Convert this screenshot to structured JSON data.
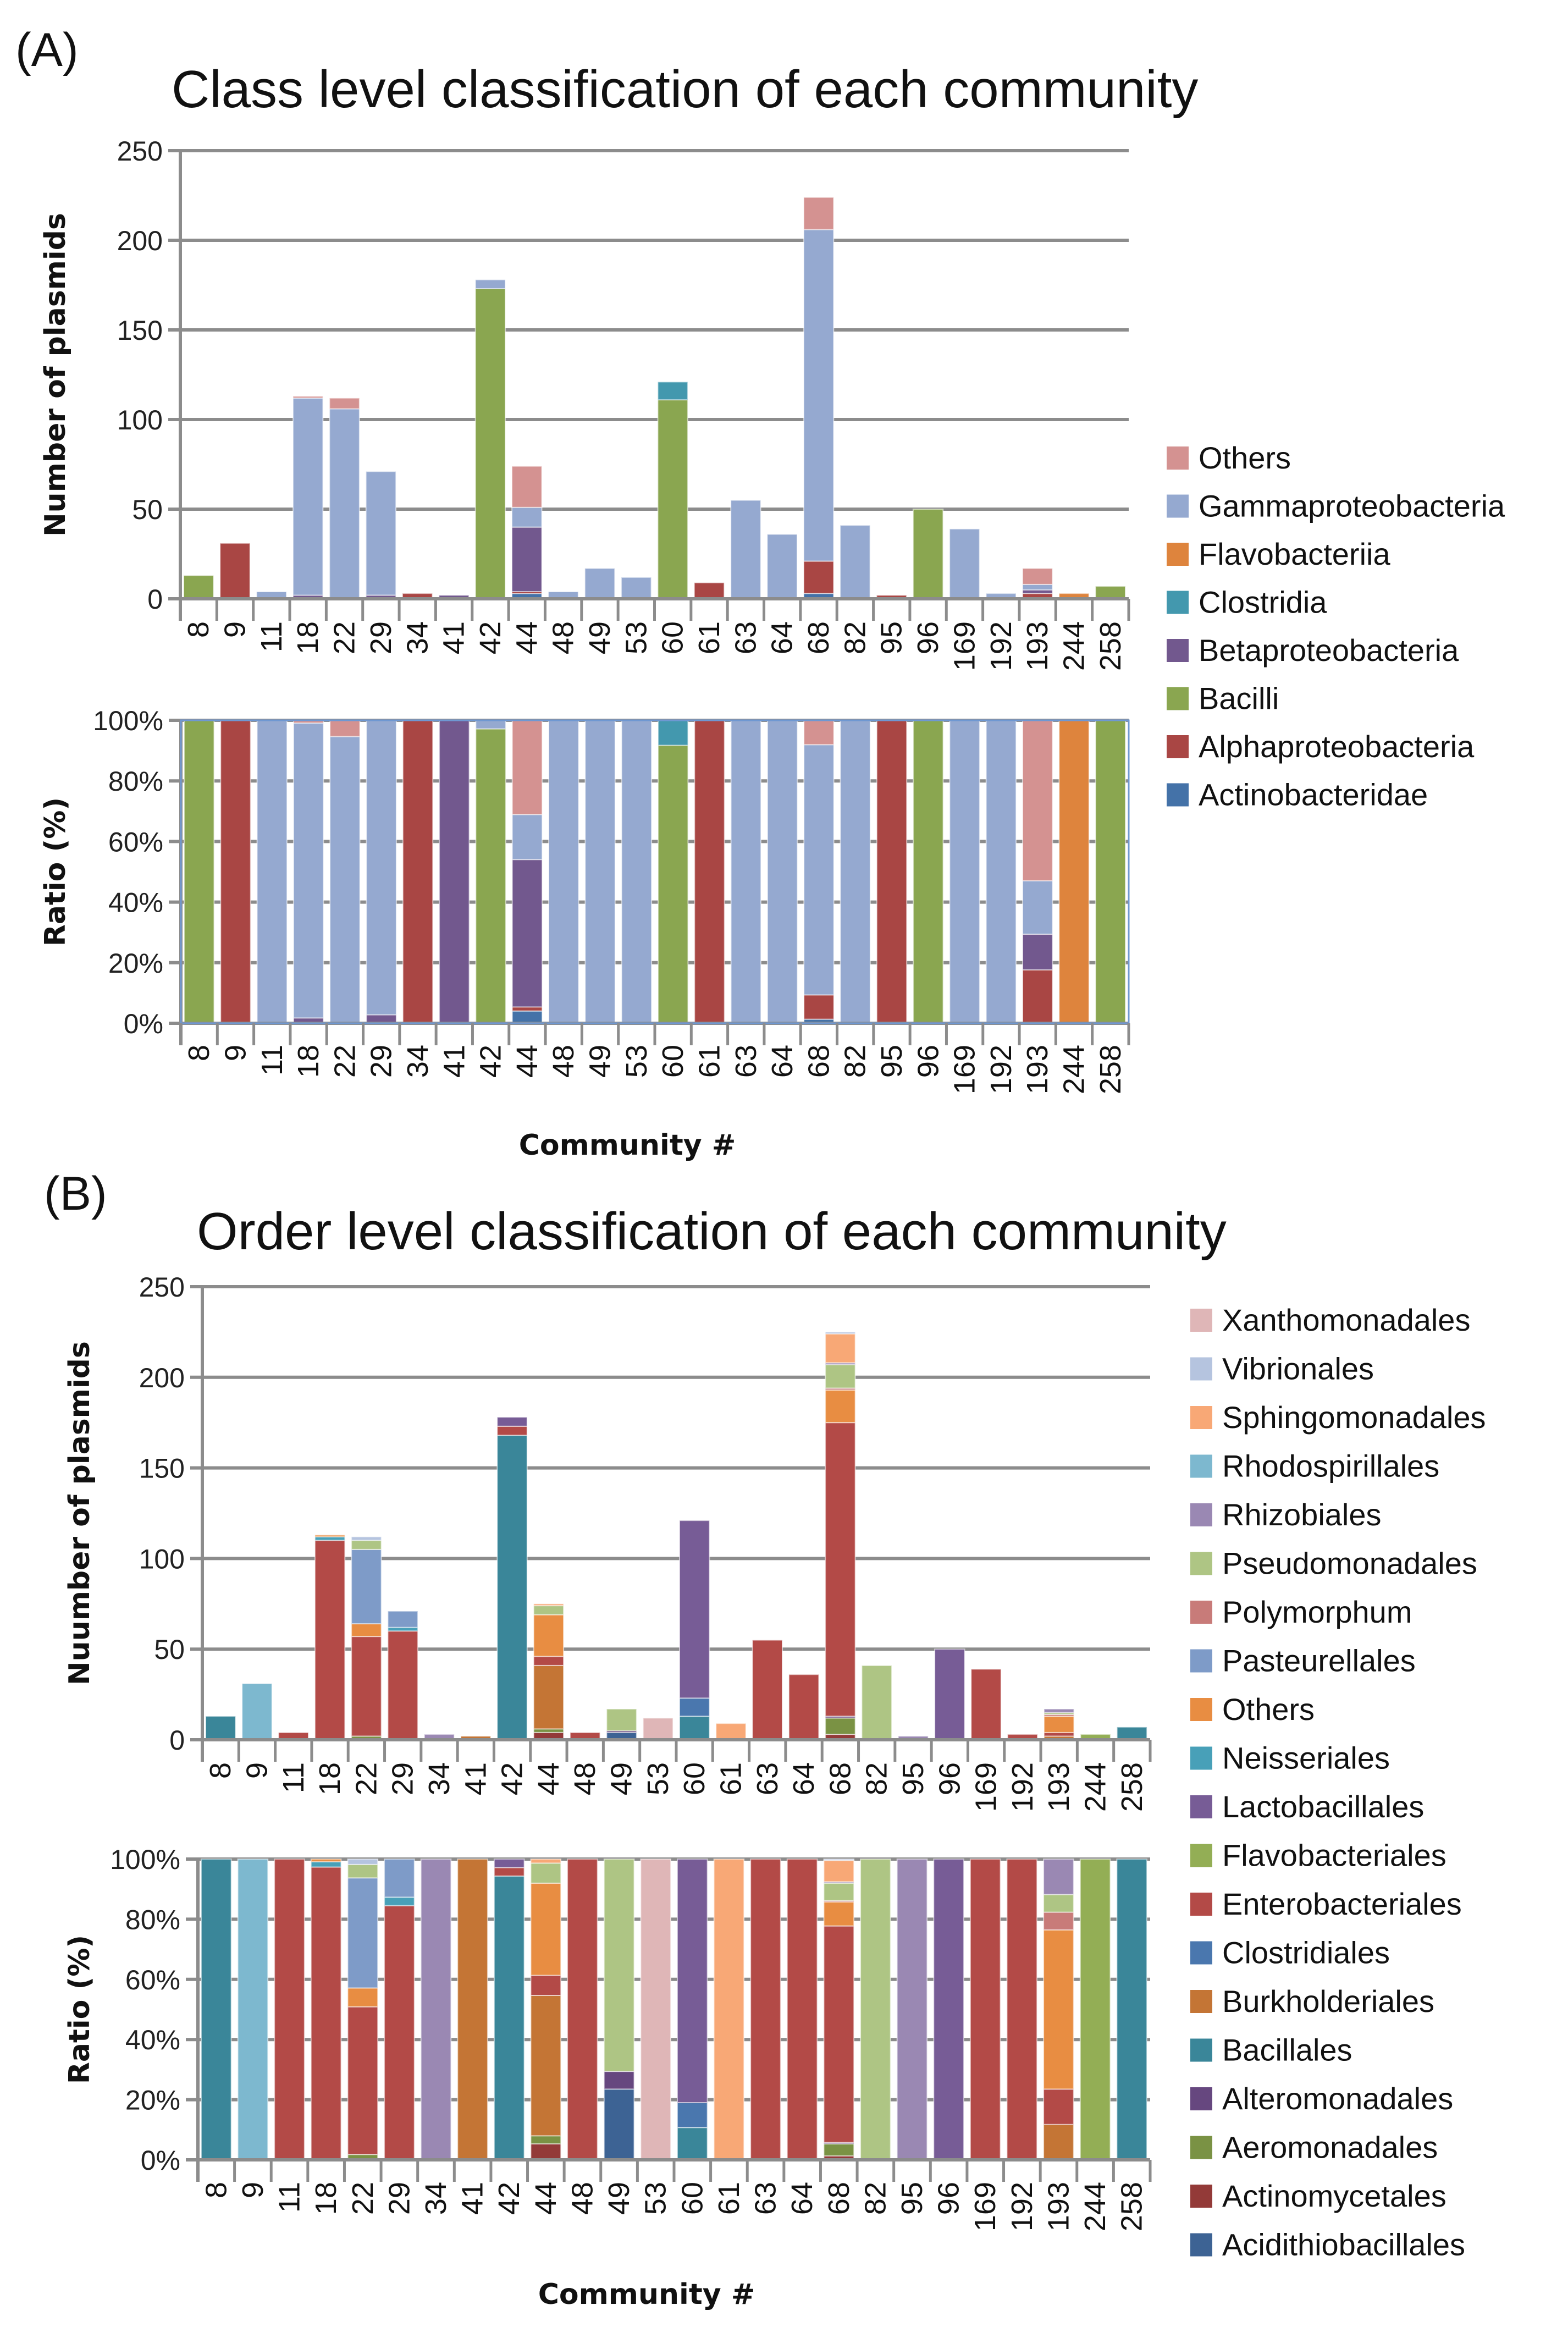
{
  "panels": [
    {
      "tag": "(A)",
      "title": "Class level classification of each community",
      "legend_order_top_to_bottom": [
        "Others",
        "Gammaproteobacteria",
        "Flavobacteriia",
        "Clostridia",
        "Betaproteobacteria",
        "Bacilli",
        "Alphaproteobacteria",
        "Actinobacteridae"
      ]
    },
    {
      "tag": "(B)",
      "title": "Order level classification of each community",
      "legend_order_top_to_bottom": [
        "Xanthomonadales",
        "Vibrionales",
        "Sphingomonadales",
        "Rhodospirillales",
        "Rhizobiales",
        "Pseudomonadales",
        "Polymorphum",
        "Pasteurellales",
        "Others",
        "Neisseriales",
        "Lactobacillales",
        "Flavobacteriales",
        "Enterobacteriales",
        "Clostridiales",
        "Burkholderiales",
        "Bacillales",
        "Alteromonadales",
        "Aeromonadales",
        "Actinomycetales",
        "Acidithiobacillales"
      ]
    }
  ],
  "chart_data": [
    {
      "id": "A-count",
      "type": "bar",
      "stacked": true,
      "title": "Class level classification of each community",
      "xlabel": "",
      "ylabel": "Number of plasmids",
      "ylim": [
        0,
        250
      ],
      "yticks": [
        0,
        50,
        100,
        150,
        200,
        250
      ],
      "ytick_labels": [
        "0",
        "50",
        "100",
        "150",
        "200",
        "250"
      ],
      "grid": true,
      "legend": "right",
      "categories": [
        "8",
        "9",
        "11",
        "18",
        "22",
        "29",
        "34",
        "41",
        "42",
        "44",
        "48",
        "49",
        "53",
        "60",
        "61",
        "63",
        "64",
        "68",
        "82",
        "95",
        "96",
        "169",
        "192",
        "193",
        "244",
        "258"
      ],
      "series": [
        {
          "name": "Actinobacteridae",
          "color": "#4472A8",
          "values": [
            0,
            0,
            0,
            0,
            0,
            0,
            0,
            0,
            0,
            3,
            0,
            0,
            0,
            0,
            0,
            0,
            0,
            3,
            0,
            0,
            0,
            0,
            0,
            0,
            0,
            0
          ]
        },
        {
          "name": "Alphaproteobacteria",
          "color": "#A94644",
          "values": [
            0,
            31,
            0,
            0,
            0,
            0,
            3,
            0,
            0,
            1,
            0,
            0,
            0,
            0,
            9,
            0,
            0,
            18,
            0,
            2,
            0,
            0,
            0,
            3,
            0,
            0
          ]
        },
        {
          "name": "Bacilli",
          "color": "#8AA650",
          "values": [
            13,
            0,
            0,
            0,
            0,
            0,
            0,
            0,
            173,
            0,
            0,
            0,
            0,
            111,
            0,
            0,
            0,
            0,
            0,
            0,
            50,
            0,
            0,
            0,
            0,
            7
          ]
        },
        {
          "name": "Betaproteobacteria",
          "color": "#72588E",
          "values": [
            0,
            0,
            0,
            2,
            0,
            2,
            0,
            2,
            0,
            36,
            0,
            0,
            0,
            0,
            0,
            0,
            0,
            0,
            0,
            0,
            0,
            0,
            0,
            2,
            0,
            0
          ]
        },
        {
          "name": "Clostridia",
          "color": "#4398AE",
          "values": [
            0,
            0,
            0,
            0,
            0,
            0,
            0,
            0,
            0,
            0,
            0,
            0,
            0,
            10,
            0,
            0,
            0,
            0,
            0,
            0,
            0,
            0,
            0,
            0,
            0,
            0
          ]
        },
        {
          "name": "Flavobacteriia",
          "color": "#DE843D",
          "values": [
            0,
            0,
            0,
            0,
            0,
            0,
            0,
            0,
            0,
            0,
            0,
            0,
            0,
            0,
            0,
            0,
            0,
            0,
            0,
            0,
            0,
            0,
            0,
            0,
            3,
            0
          ]
        },
        {
          "name": "Gammaproteobacteria",
          "color": "#95A9D0",
          "values": [
            0,
            0,
            4,
            110,
            106,
            69,
            0,
            0,
            5,
            11,
            4,
            17,
            12,
            0,
            0,
            55,
            36,
            185,
            41,
            0,
            0,
            39,
            3,
            3,
            0,
            0
          ]
        },
        {
          "name": "Others",
          "color": "#D49291",
          "values": [
            0,
            0,
            0,
            1,
            6,
            0,
            0,
            0,
            0,
            23,
            0,
            0,
            0,
            0,
            0,
            0,
            0,
            18,
            0,
            0,
            0,
            0,
            0,
            9,
            0,
            0
          ]
        }
      ]
    },
    {
      "id": "A-ratio",
      "type": "bar",
      "stacked": true,
      "normalized": true,
      "source": "A-count",
      "xlabel": "Community #",
      "ylabel": "Ratio (%)",
      "ylim": [
        0,
        100
      ],
      "yticks": [
        0,
        20,
        40,
        60,
        80,
        100
      ],
      "ytick_labels": [
        "0%",
        "20%",
        "40%",
        "60%",
        "80%",
        "100%"
      ],
      "grid": true
    },
    {
      "id": "B-count",
      "type": "bar",
      "stacked": true,
      "title": "Order level classification of each community",
      "xlabel": "",
      "ylabel": "Nuumber of plasmids",
      "ylim": [
        0,
        250
      ],
      "yticks": [
        0,
        50,
        100,
        150,
        200,
        250
      ],
      "ytick_labels": [
        "0",
        "50",
        "100",
        "150",
        "200",
        "250"
      ],
      "grid": true,
      "legend": "right",
      "categories": [
        "8",
        "9",
        "11",
        "18",
        "22",
        "29",
        "34",
        "41",
        "42",
        "44",
        "48",
        "49",
        "53",
        "60",
        "61",
        "63",
        "64",
        "68",
        "82",
        "95",
        "96",
        "169",
        "192",
        "193",
        "244",
        "258"
      ],
      "series": [
        {
          "name": "Acidithiobacillales",
          "color": "#3D6394",
          "values": [
            0,
            0,
            0,
            0,
            0,
            0,
            0,
            0,
            0,
            0,
            0,
            4,
            0,
            0,
            0,
            0,
            0,
            0,
            0,
            0,
            0,
            0,
            0,
            0,
            0,
            0
          ]
        },
        {
          "name": "Actinomycetales",
          "color": "#933A38",
          "values": [
            0,
            0,
            0,
            0,
            0,
            0,
            0,
            0,
            0,
            4,
            0,
            0,
            0,
            0,
            0,
            0,
            0,
            3,
            0,
            0,
            0,
            0,
            0,
            0,
            0,
            0
          ]
        },
        {
          "name": "Aeromonadales",
          "color": "#7A9244",
          "values": [
            0,
            0,
            0,
            0,
            2,
            0,
            0,
            0,
            0,
            2,
            0,
            0,
            0,
            0,
            0,
            0,
            0,
            9,
            0,
            0,
            0,
            0,
            0,
            0,
            0,
            0
          ]
        },
        {
          "name": "Alteromonadales",
          "color": "#66477F",
          "values": [
            0,
            0,
            0,
            0,
            0,
            0,
            0,
            0,
            0,
            0,
            0,
            1,
            0,
            0,
            0,
            0,
            0,
            1,
            0,
            0,
            0,
            0,
            0,
            0,
            0,
            0
          ]
        },
        {
          "name": "Bacillales",
          "color": "#3A8699",
          "values": [
            13,
            0,
            0,
            0,
            0,
            0,
            0,
            0,
            168,
            0,
            0,
            0,
            0,
            13,
            0,
            0,
            0,
            0,
            0,
            0,
            0,
            0,
            0,
            0,
            0,
            7
          ]
        },
        {
          "name": "Burkholderiales",
          "color": "#C47535",
          "values": [
            0,
            0,
            0,
            0,
            0,
            0,
            0,
            2,
            0,
            35,
            0,
            0,
            0,
            0,
            0,
            0,
            0,
            0,
            0,
            0,
            0,
            0,
            0,
            2,
            0,
            0
          ]
        },
        {
          "name": "Clostridiales",
          "color": "#4A77AE",
          "values": [
            0,
            0,
            0,
            0,
            0,
            0,
            0,
            0,
            0,
            0,
            0,
            0,
            0,
            10,
            0,
            0,
            0,
            0,
            0,
            0,
            0,
            0,
            0,
            0,
            0,
            0
          ]
        },
        {
          "name": "Enterobacteriales",
          "color": "#B34A47",
          "values": [
            0,
            0,
            4,
            110,
            55,
            60,
            0,
            0,
            5,
            5,
            4,
            0,
            0,
            0,
            0,
            55,
            36,
            162,
            0,
            0,
            0,
            39,
            3,
            2,
            0,
            0
          ]
        },
        {
          "name": "Flavobacteriales",
          "color": "#93AE55",
          "values": [
            0,
            0,
            0,
            0,
            0,
            0,
            0,
            0,
            0,
            0,
            0,
            0,
            0,
            0,
            0,
            0,
            0,
            0,
            0,
            0,
            0,
            0,
            0,
            0,
            3,
            0
          ]
        },
        {
          "name": "Lactobacillales",
          "color": "#775C96",
          "values": [
            0,
            0,
            0,
            0,
            0,
            0,
            0,
            0,
            5,
            0,
            0,
            0,
            0,
            98,
            0,
            0,
            0,
            0,
            0,
            0,
            50,
            0,
            0,
            0,
            0,
            0
          ]
        },
        {
          "name": "Neisseriales",
          "color": "#48A0B8",
          "values": [
            0,
            0,
            0,
            2,
            0,
            2,
            0,
            0,
            0,
            0,
            0,
            0,
            0,
            0,
            0,
            0,
            0,
            0,
            0,
            0,
            0,
            0,
            0,
            0,
            0,
            0
          ]
        },
        {
          "name": "Others",
          "color": "#E88D42",
          "values": [
            0,
            0,
            0,
            1,
            7,
            0,
            0,
            0,
            0,
            23,
            0,
            0,
            0,
            0,
            0,
            0,
            0,
            18,
            0,
            0,
            0,
            0,
            0,
            9,
            0,
            0
          ]
        },
        {
          "name": "Pasteurellales",
          "color": "#7E9BC8",
          "values": [
            0,
            0,
            0,
            0,
            41,
            9,
            0,
            0,
            0,
            0,
            0,
            0,
            0,
            0,
            0,
            0,
            0,
            0,
            0,
            0,
            0,
            0,
            0,
            0,
            0,
            0
          ]
        },
        {
          "name": "Polymorphum",
          "color": "#C87B79",
          "values": [
            0,
            0,
            0,
            0,
            0,
            0,
            0,
            0,
            0,
            0,
            0,
            0,
            0,
            0,
            0,
            0,
            0,
            1,
            0,
            0,
            0,
            0,
            0,
            1,
            0,
            0
          ]
        },
        {
          "name": "Pseudomonadales",
          "color": "#AEC584",
          "values": [
            0,
            0,
            0,
            0,
            5,
            0,
            0,
            0,
            0,
            5,
            0,
            12,
            0,
            0,
            0,
            0,
            0,
            13,
            41,
            0,
            0,
            0,
            0,
            1,
            0,
            0
          ]
        },
        {
          "name": "Rhizobiales",
          "color": "#9A88B3",
          "values": [
            0,
            0,
            0,
            0,
            0,
            0,
            3,
            0,
            0,
            0,
            0,
            0,
            0,
            0,
            0,
            0,
            0,
            1,
            0,
            2,
            0,
            0,
            0,
            2,
            0,
            0
          ]
        },
        {
          "name": "Rhodospirillales",
          "color": "#7DB8CF",
          "values": [
            0,
            31,
            0,
            0,
            0,
            0,
            0,
            0,
            0,
            0,
            0,
            0,
            0,
            0,
            0,
            0,
            0,
            0,
            0,
            0,
            0,
            0,
            0,
            0,
            0,
            0
          ]
        },
        {
          "name": "Sphingomonadales",
          "color": "#F8A876",
          "values": [
            0,
            0,
            0,
            0,
            0,
            0,
            0,
            0,
            0,
            1,
            0,
            0,
            0,
            0,
            9,
            0,
            0,
            16,
            0,
            0,
            0,
            0,
            0,
            0,
            0,
            0
          ]
        },
        {
          "name": "Vibrionales",
          "color": "#B5C4DF",
          "values": [
            0,
            0,
            0,
            0,
            2,
            0,
            0,
            0,
            0,
            0,
            0,
            0,
            0,
            0,
            0,
            0,
            0,
            1,
            0,
            0,
            0,
            0,
            0,
            0,
            0,
            0
          ]
        },
        {
          "name": "Xanthomonadales",
          "color": "#DFB6B7",
          "values": [
            0,
            0,
            0,
            0,
            0,
            0,
            0,
            0,
            0,
            0,
            0,
            0,
            12,
            0,
            0,
            0,
            0,
            0,
            0,
            0,
            0,
            0,
            0,
            0,
            0,
            0
          ]
        }
      ]
    },
    {
      "id": "B-ratio",
      "type": "bar",
      "stacked": true,
      "normalized": true,
      "source": "B-count",
      "xlabel": "Community #",
      "ylabel": "Ratio (%)",
      "ylim": [
        0,
        100
      ],
      "yticks": [
        0,
        20,
        40,
        60,
        80,
        100
      ],
      "ytick_labels": [
        "0%",
        "20%",
        "40%",
        "60%",
        "80%",
        "100%"
      ],
      "grid": true
    }
  ]
}
